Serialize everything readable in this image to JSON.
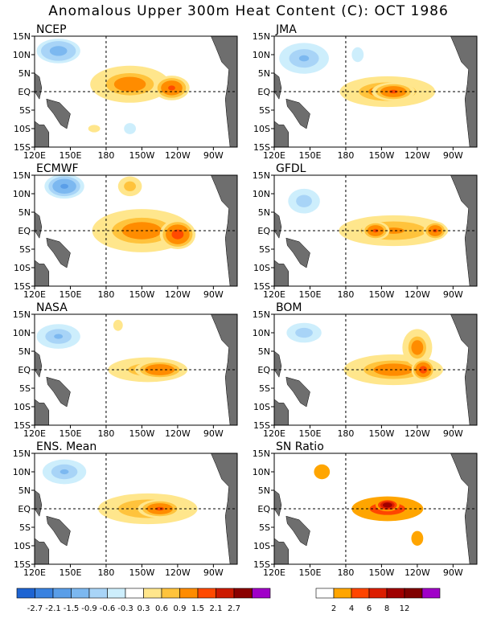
{
  "title": "Anomalous Upper 300m Heat Content (C): OCT 1986",
  "chart_data": [
    {
      "type": "heatmap",
      "name": "NCEP",
      "title": "NCEP",
      "blobs": [
        {
          "lon": 200,
          "lat": 2,
          "rx": 40,
          "ry": 6,
          "v": 1.2
        },
        {
          "lon": 235,
          "lat": 1,
          "rx": 18,
          "ry": 4,
          "v": 1.7
        },
        {
          "lon": 170,
          "lat": -10,
          "rx": 15,
          "ry": 3,
          "v": 0.4
        },
        {
          "lon": 140,
          "lat": 11,
          "rx": 22,
          "ry": 4,
          "v": -1.2
        },
        {
          "lon": 200,
          "lat": -10,
          "rx": 10,
          "ry": 3,
          "v": -0.5
        }
      ]
    },
    {
      "type": "heatmap",
      "name": "JMA",
      "title": "JMA",
      "blobs": [
        {
          "lon": 215,
          "lat": 0,
          "rx": 48,
          "ry": 5,
          "v": 1.1
        },
        {
          "lon": 220,
          "lat": 0,
          "rx": 22,
          "ry": 3,
          "v": 1.8
        },
        {
          "lon": 145,
          "lat": 9,
          "rx": 25,
          "ry": 5,
          "v": -0.9
        },
        {
          "lon": 190,
          "lat": 10,
          "rx": 10,
          "ry": 4,
          "v": -0.5
        }
      ]
    },
    {
      "type": "heatmap",
      "name": "ECMWF",
      "title": "ECMWF",
      "blobs": [
        {
          "lon": 210,
          "lat": 0,
          "rx": 50,
          "ry": 7,
          "v": 1.2
        },
        {
          "lon": 240,
          "lat": -1,
          "rx": 15,
          "ry": 4,
          "v": 2.0
        },
        {
          "lon": 145,
          "lat": 12,
          "rx": 20,
          "ry": 4,
          "v": -1.6
        },
        {
          "lon": 200,
          "lat": 12,
          "rx": 15,
          "ry": 4,
          "v": 0.8
        }
      ]
    },
    {
      "type": "heatmap",
      "name": "GFDL",
      "title": "GFDL",
      "blobs": [
        {
          "lon": 220,
          "lat": 0,
          "rx": 55,
          "ry": 5,
          "v": 1.0
        },
        {
          "lon": 205,
          "lat": 0,
          "rx": 14,
          "ry": 3,
          "v": 1.6
        },
        {
          "lon": 255,
          "lat": 0,
          "rx": 12,
          "ry": 3,
          "v": 1.6
        },
        {
          "lon": 145,
          "lat": 8,
          "rx": 20,
          "ry": 5,
          "v": -0.8
        }
      ]
    },
    {
      "type": "heatmap",
      "name": "NASA",
      "title": "NASA",
      "blobs": [
        {
          "lon": 215,
          "lat": 0,
          "rx": 50,
          "ry": 5,
          "v": 0.9
        },
        {
          "lon": 225,
          "lat": 0,
          "rx": 25,
          "ry": 3,
          "v": 1.4
        },
        {
          "lon": 140,
          "lat": 9,
          "rx": 22,
          "ry": 4,
          "v": -0.9
        },
        {
          "lon": 190,
          "lat": 12,
          "rx": 8,
          "ry": 3,
          "v": 0.6
        }
      ]
    },
    {
      "type": "heatmap",
      "name": "BOM",
      "title": "BOM",
      "blobs": [
        {
          "lon": 220,
          "lat": 0,
          "rx": 50,
          "ry": 5,
          "v": 1.1
        },
        {
          "lon": 240,
          "lat": 6,
          "rx": 15,
          "ry": 6,
          "v": 1.2
        },
        {
          "lon": 245,
          "lat": 0,
          "rx": 10,
          "ry": 3,
          "v": 2.0
        },
        {
          "lon": 145,
          "lat": 10,
          "rx": 22,
          "ry": 4,
          "v": -0.8
        }
      ]
    },
    {
      "type": "heatmap",
      "name": "ENS. Mean",
      "title": "ENS. Mean",
      "blobs": [
        {
          "lon": 215,
          "lat": 0,
          "rx": 50,
          "ry": 5,
          "v": 1.0
        },
        {
          "lon": 225,
          "lat": 0,
          "rx": 22,
          "ry": 3,
          "v": 1.6
        },
        {
          "lon": 145,
          "lat": 10,
          "rx": 22,
          "ry": 4,
          "v": -0.9
        }
      ]
    },
    {
      "type": "heatmap",
      "name": "SN Ratio",
      "title": "SN Ratio",
      "blobs": [
        {
          "lon": 215,
          "lat": 0,
          "rx": 45,
          "ry": 5,
          "v": 6
        },
        {
          "lon": 215,
          "lat": 1,
          "rx": 12,
          "ry": 2,
          "v": 12
        },
        {
          "lon": 160,
          "lat": 10,
          "rx": 20,
          "ry": 6,
          "v": 3
        },
        {
          "lon": 240,
          "lat": -8,
          "rx": 10,
          "ry": 4,
          "v": 4
        }
      ]
    }
  ],
  "axes": {
    "x_ticks": [
      "120E",
      "150E",
      "180",
      "150W",
      "120W",
      "90W"
    ],
    "x_tick_lons": [
      120,
      150,
      180,
      210,
      240,
      270
    ],
    "y_ticks": [
      "15N",
      "10N",
      "5N",
      "EQ",
      "5S",
      "10S",
      "15S"
    ],
    "y_tick_lats": [
      15,
      10,
      5,
      0,
      -5,
      -10,
      -15
    ],
    "lon_range": [
      120,
      290
    ],
    "lat_range": [
      -15,
      15
    ]
  },
  "colorbar_anomaly": {
    "labels": [
      "-2.7",
      "-2.1",
      "-1.5",
      "-0.9",
      "-0.6",
      "-0.3",
      "0.3",
      "0.6",
      "0.9",
      "1.5",
      "2.1",
      "2.7"
    ],
    "colors": [
      "#1e64d2",
      "#3a82e0",
      "#5a9ee8",
      "#7cb8f0",
      "#a8d4f7",
      "#cdeefc",
      "#ffffff",
      "#ffe68c",
      "#ffc33c",
      "#ff8c00",
      "#ff4a00",
      "#cc1a00",
      "#8a0000",
      "#a000c8"
    ]
  },
  "colorbar_snr": {
    "labels": [
      "2",
      "4",
      "6",
      "8",
      "12"
    ],
    "colors": [
      "#ffffff",
      "#ffa500",
      "#ff4500",
      "#dc1e00",
      "#a00000",
      "#800000",
      "#a000c8"
    ]
  },
  "colors": {
    "land": "#6e6e6e",
    "frame": "#000000"
  }
}
